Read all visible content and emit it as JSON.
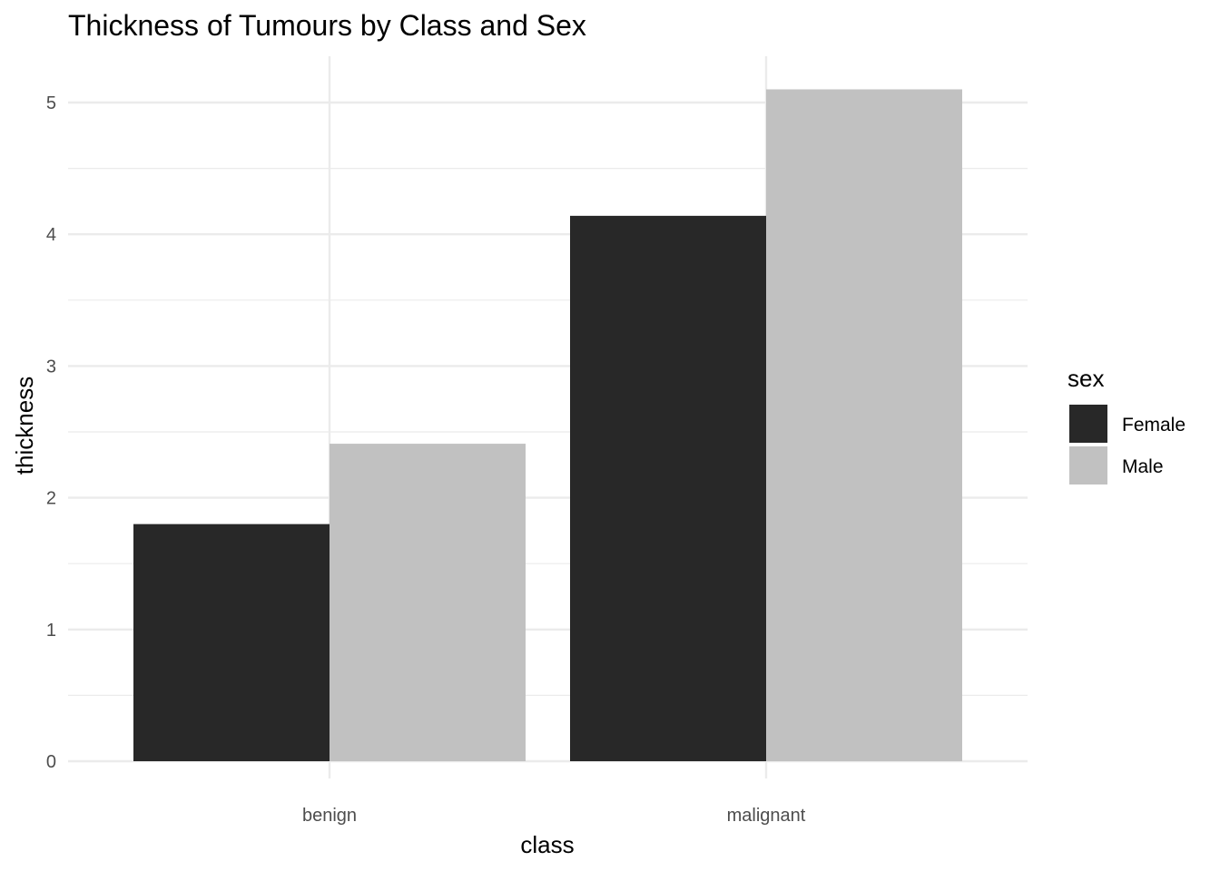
{
  "chart_data": {
    "type": "bar",
    "title": "Thickness of Tumours by Class and Sex",
    "xlabel": "class",
    "ylabel": "thickness",
    "categories": [
      "benign",
      "malignant"
    ],
    "series": [
      {
        "name": "Female",
        "values": [
          1.8,
          4.14
        ],
        "color": "#282828"
      },
      {
        "name": "Male",
        "values": [
          2.41,
          5.1
        ],
        "color": "#c1c1c1"
      }
    ],
    "ylim": [
      0,
      5.35
    ],
    "yticks": [
      0,
      1,
      2,
      3,
      4,
      5
    ],
    "grid": true,
    "legend": {
      "title": "sex",
      "placement": "right"
    }
  }
}
